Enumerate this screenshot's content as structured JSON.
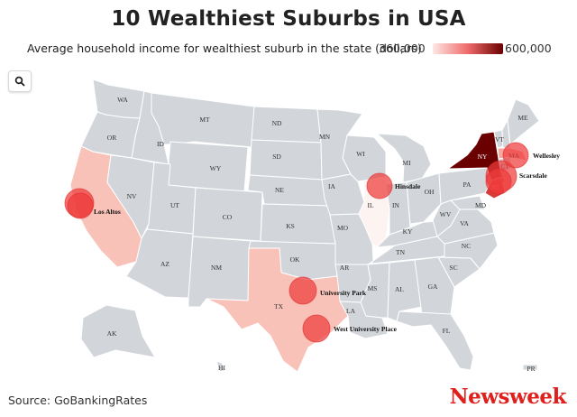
{
  "header": {
    "title": "10 Wealthiest Suburbs in USA",
    "legend_label": "Average household income for wealthiest suburb in the state (dollars)",
    "legend_min": "360,000",
    "legend_max": "600,000"
  },
  "colors": {
    "no_data": "#d2d6db",
    "low": "#fde8e4",
    "mid": "#ef6a6a",
    "high": "#6b0000",
    "marker": "#ef3b3b",
    "brand": "#e0201d"
  },
  "states": {
    "WA": "WA",
    "OR": "OR",
    "CA": "CA",
    "ID": "ID",
    "NV": "NV",
    "MT": "MT",
    "WY": "WY",
    "UT": "UT",
    "AZ": "AZ",
    "CO": "CO",
    "NM": "NM",
    "ND": "ND",
    "SD": "SD",
    "NE": "NE",
    "KS": "KS",
    "OK": "OK",
    "TX": "TX",
    "MN": "MN",
    "IA": "IA",
    "MO": "MO",
    "AR": "AR",
    "LA": "LA",
    "WI": "WI",
    "IL": "IL",
    "MI": "MI",
    "IN": "IN",
    "OH": "OH",
    "KY": "KY",
    "TN": "TN",
    "MS": "MS",
    "AL": "AL",
    "GA": "GA",
    "FL": "FL",
    "SC": "SC",
    "NC": "NC",
    "VA": "VA",
    "WV": "WV",
    "PA": "PA",
    "NY": "NY",
    "NJ": "NJ",
    "MD": "MD",
    "CT": "CT",
    "MA": "MA",
    "VT": "VT",
    "ME": "ME",
    "AK": "AK",
    "HI": "HI",
    "PR": "PR"
  },
  "suburbs": {
    "los_altos": "Los Altos",
    "hinsdale": "Hinsdale",
    "university_park": "University Park",
    "west_university_place": "West University Place",
    "scarsdale": "Scarsdale",
    "wellesley": "Wellesley"
  },
  "footer": {
    "source": "Source: GoBankingRates",
    "brand": "Newsweek"
  },
  "icons": {
    "search": "search-icon"
  }
}
